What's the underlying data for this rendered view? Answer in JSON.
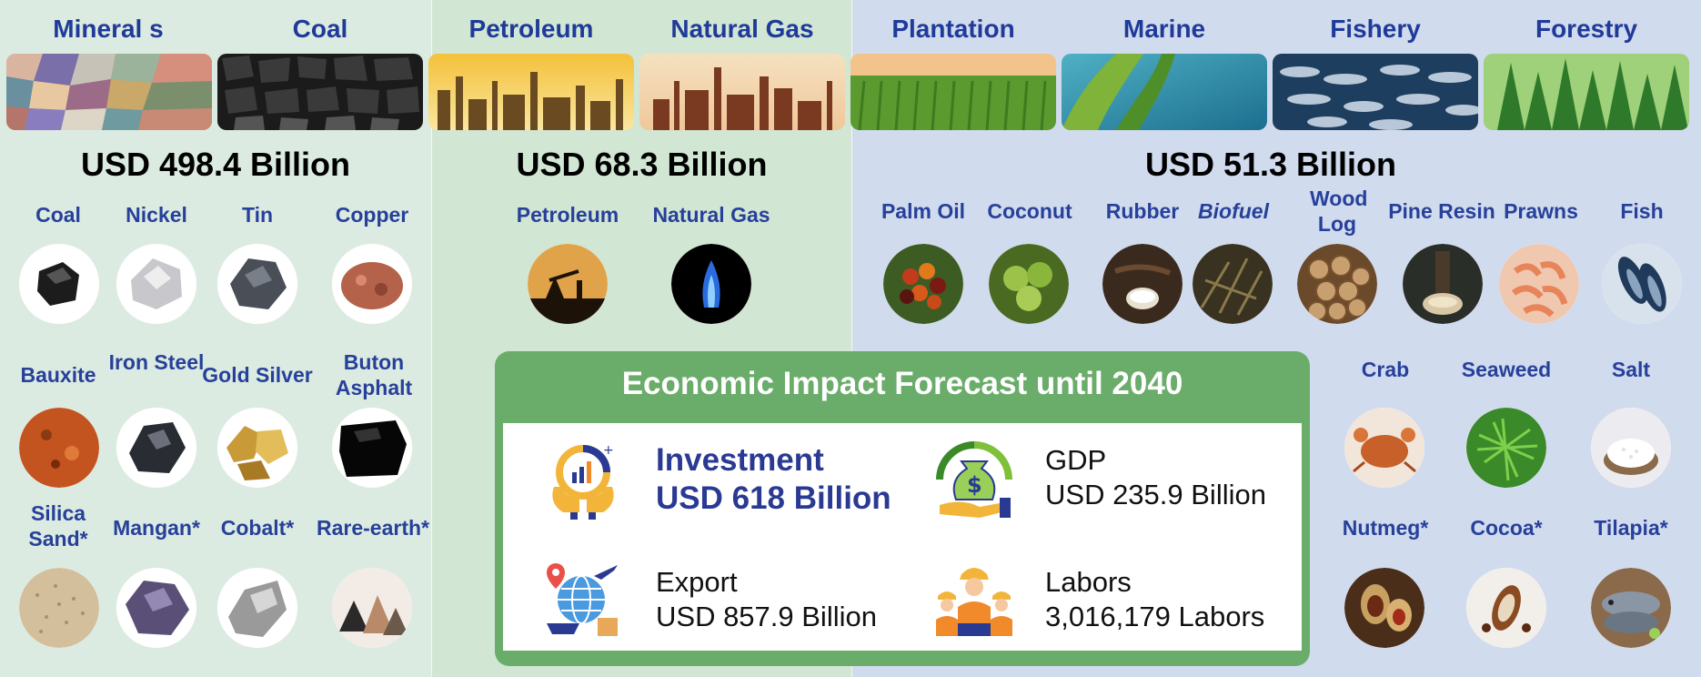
{
  "categories": [
    "Mineral s",
    "Coal",
    "Petroleum",
    "Natural Gas",
    "Plantation",
    "Marine",
    "Fishery",
    "Forestry"
  ],
  "totals": {
    "minerals": "USD 498.4 Billion",
    "oil_gas": "USD 68.3 Billion",
    "renewables": "USD 51.3 Billion"
  },
  "mineral_items": [
    "Coal",
    "Nickel",
    "Tin",
    "Copper",
    "Bauxite",
    "Iron Steel",
    "Gold Silver",
    "Buton Asphalt",
    "Silica Sand*",
    "Mangan*",
    "Cobalt*",
    "Rare-earth*"
  ],
  "oil_gas_items": [
    "Petroleum",
    "Natural Gas"
  ],
  "renewable_items": [
    "Palm Oil",
    "Coconut",
    "Rubber",
    "Biofuel",
    "Wood Log",
    "Pine Resin",
    "Prawns",
    "Fish",
    "Crab",
    "Seaweed",
    "Salt",
    "Nutmeg*",
    "Cocoa*",
    "Tilapia*"
  ],
  "forecast": {
    "title": "Economic Impact Forecast until 2040",
    "investment": {
      "label": "Investment",
      "value": "USD 618 Billion"
    },
    "gdp": {
      "label": "GDP",
      "value": "USD 235.9 Billion"
    },
    "export": {
      "label": "Export",
      "value": "USD 857.9 Billion"
    },
    "labors": {
      "label": "Labors",
      "value": "3,016,179 Labors"
    }
  },
  "colors": {
    "title_blue": "#1f3a99",
    "item_blue": "#27409a",
    "forecast_green": "#6aac6a"
  },
  "icons": [
    "investment-chart-icon",
    "money-bag-icon",
    "globe-export-icon",
    "workers-icon"
  ]
}
